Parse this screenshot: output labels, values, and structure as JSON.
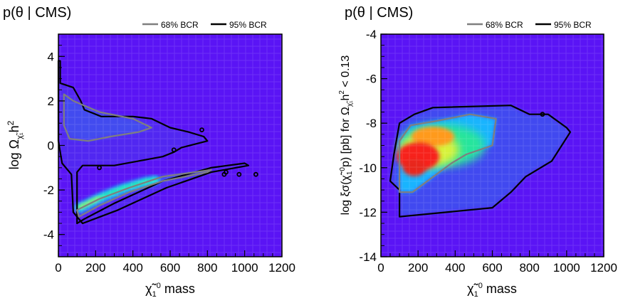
{
  "chart_data": [
    {
      "type": "heatmap",
      "title": "p(θ | CMS)",
      "legend": [
        {
          "name": "68% BCR",
          "color": "#7f7f7f"
        },
        {
          "name": "95% BCR",
          "color": "#000000"
        }
      ],
      "legend_position": "top-right",
      "xlabel": "χ̃₁⁰ mass",
      "ylabel": "log Ω h²",
      "xlim": [
        0,
        1200
      ],
      "ylim": [
        -5,
        5
      ],
      "xticks": [
        0,
        200,
        400,
        600,
        800,
        1000,
        1200
      ],
      "yticks": [
        -4,
        -2,
        0,
        2,
        4
      ],
      "background_color": "#5a14f5",
      "contour_95": [
        [
          10,
          3.8
        ],
        [
          10,
          2.8
        ],
        [
          80,
          2.6
        ],
        [
          120,
          2.0
        ],
        [
          140,
          1.6
        ],
        [
          230,
          1.3
        ],
        [
          400,
          1.3
        ],
        [
          500,
          1.2
        ],
        [
          600,
          0.8
        ],
        [
          700,
          0.6
        ],
        [
          780,
          0.4
        ],
        [
          800,
          0.2
        ],
        [
          660,
          -0.1
        ],
        [
          620,
          -0.3
        ],
        [
          560,
          -0.5
        ],
        [
          300,
          -0.9
        ],
        [
          130,
          -0.9
        ],
        [
          100,
          -1.2
        ],
        [
          100,
          -3.5
        ],
        [
          140,
          -3.3
        ],
        [
          300,
          -2.6
        ],
        [
          560,
          -1.6
        ],
        [
          820,
          -1.0
        ],
        [
          1000,
          -0.8
        ],
        [
          1020,
          -0.9
        ],
        [
          820,
          -1.2
        ],
        [
          580,
          -1.9
        ],
        [
          320,
          -2.9
        ],
        [
          130,
          -3.5
        ],
        [
          80,
          -3.0
        ],
        [
          70,
          -1.3
        ],
        [
          20,
          -0.8
        ],
        [
          0,
          0.2
        ],
        [
          0,
          3.8
        ],
        [
          10,
          3.8
        ]
      ],
      "contour_68_upper": [
        [
          30,
          2.3
        ],
        [
          80,
          2.0
        ],
        [
          220,
          1.5
        ],
        [
          400,
          1.2
        ],
        [
          500,
          0.8
        ],
        [
          430,
          0.6
        ],
        [
          280,
          0.4
        ],
        [
          160,
          0.2
        ],
        [
          60,
          0.3
        ],
        [
          30,
          0.9
        ],
        [
          30,
          2.3
        ]
      ],
      "contour_68_lower": [
        [
          100,
          -2.9
        ],
        [
          220,
          -2.4
        ],
        [
          380,
          -1.9
        ],
        [
          560,
          -1.4
        ],
        [
          820,
          -1.1
        ],
        [
          800,
          -1.2
        ],
        [
          560,
          -1.6
        ],
        [
          380,
          -2.1
        ],
        [
          220,
          -2.7
        ],
        [
          110,
          -3.2
        ],
        [
          100,
          -2.9
        ]
      ],
      "hot_band": [
        [
          110,
          -2.8
        ],
        [
          160,
          -2.6
        ],
        [
          220,
          -2.35
        ],
        [
          280,
          -2.15
        ],
        [
          340,
          -1.95
        ],
        [
          400,
          -1.8
        ],
        [
          460,
          -1.65
        ],
        [
          520,
          -1.55
        ]
      ],
      "isolated_points": [
        [
          890,
          -1.3
        ],
        [
          970,
          -1.3
        ],
        [
          1060,
          -1.3
        ],
        [
          900,
          -1.2
        ],
        [
          770,
          0.7
        ],
        [
          620,
          -0.2
        ],
        [
          220,
          -1.0
        ]
      ]
    },
    {
      "type": "heatmap",
      "title": "p(θ | CMS)",
      "legend": [
        {
          "name": "68% BCR",
          "color": "#7f7f7f"
        },
        {
          "name": "95% BCR",
          "color": "#000000"
        }
      ],
      "legend_position": "top-right",
      "xlabel": "χ̃₁⁰ mass",
      "ylabel": "log ξσ(χ̃₁⁰p) [pb] for Ω h² < 0.13",
      "xlim": [
        0,
        1200
      ],
      "ylim": [
        -14,
        -4
      ],
      "xticks": [
        0,
        200,
        400,
        600,
        800,
        1000,
        1200
      ],
      "yticks": [
        -14,
        -12,
        -10,
        -8,
        -6,
        -4
      ],
      "background_color": "#5a14f5",
      "contour_95": [
        [
          100,
          -12.2
        ],
        [
          100,
          -11.0
        ],
        [
          50,
          -10.6
        ],
        [
          70,
          -9.4
        ],
        [
          100,
          -8.0
        ],
        [
          180,
          -7.6
        ],
        [
          280,
          -7.3
        ],
        [
          700,
          -7.2
        ],
        [
          800,
          -7.6
        ],
        [
          900,
          -7.6
        ],
        [
          1000,
          -8.2
        ],
        [
          1020,
          -8.4
        ],
        [
          920,
          -9.7
        ],
        [
          780,
          -10.4
        ],
        [
          700,
          -11.1
        ],
        [
          600,
          -11.8
        ],
        [
          100,
          -12.2
        ]
      ],
      "contour_68": [
        [
          100,
          -11.1
        ],
        [
          100,
          -8.8
        ],
        [
          160,
          -8.1
        ],
        [
          300,
          -7.9
        ],
        [
          480,
          -7.6
        ],
        [
          620,
          -7.8
        ],
        [
          600,
          -9.0
        ],
        [
          460,
          -9.4
        ],
        [
          380,
          -9.8
        ],
        [
          250,
          -10.6
        ],
        [
          170,
          -11.1
        ],
        [
          100,
          -11.1
        ]
      ],
      "hotspot": [
        [
          200,
          -9.5
        ],
        [
          260,
          -9.2
        ],
        [
          330,
          -9.0
        ],
        [
          180,
          -10.0
        ],
        [
          280,
          -8.6
        ]
      ],
      "isolated_points": [
        [
          870,
          -7.6
        ]
      ]
    }
  ]
}
